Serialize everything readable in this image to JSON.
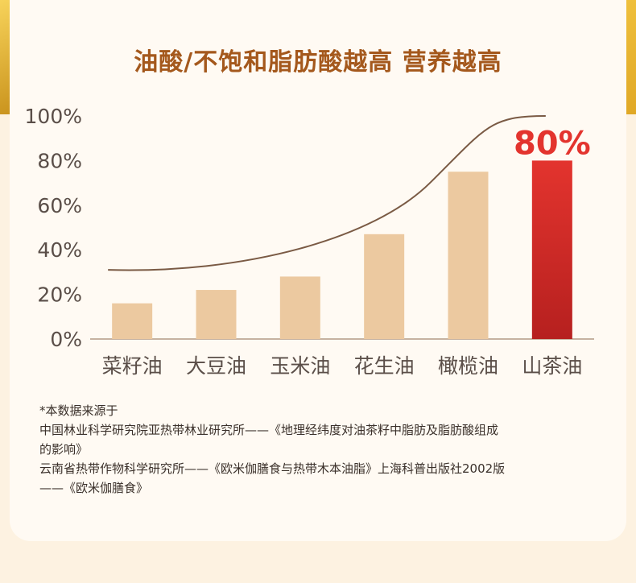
{
  "title": "油酸/不饱和脂肪酸越高 营养越高",
  "colors": {
    "title": "#a4581c",
    "bar": "#ecc9a0",
    "highlight_top": "#e3342e",
    "highlight_bottom": "#b6201f",
    "curve": "#7a5a44",
    "axis_text": "#5a4e48"
  },
  "chart_data": {
    "type": "bar",
    "title": "油酸/不饱和脂肪酸越高 营养越高",
    "categories": [
      "菜籽油",
      "大豆油",
      "玉米油",
      "花生油",
      "橄榄油",
      "山茶油"
    ],
    "values": [
      16,
      22,
      28,
      47,
      75,
      80
    ],
    "ylim": [
      0,
      100
    ],
    "yticks": [
      "0%",
      "20%",
      "40%",
      "60%",
      "80%",
      "100%"
    ],
    "highlight_index": 5,
    "highlight_label": "80%",
    "trend_curve": true,
    "grid": false
  },
  "notes": [
    "*本数据来源于",
    "中国林业科学研究院亚热带林业研究所——《地理经纬度对油茶籽中脂肪及脂肪酸组成",
    "的影响》",
    "云南省热带作物科学研究所——《欧米伽膳食与热带木本油脂》上海科普出版社2002版",
    "——《欧米伽膳食》"
  ]
}
